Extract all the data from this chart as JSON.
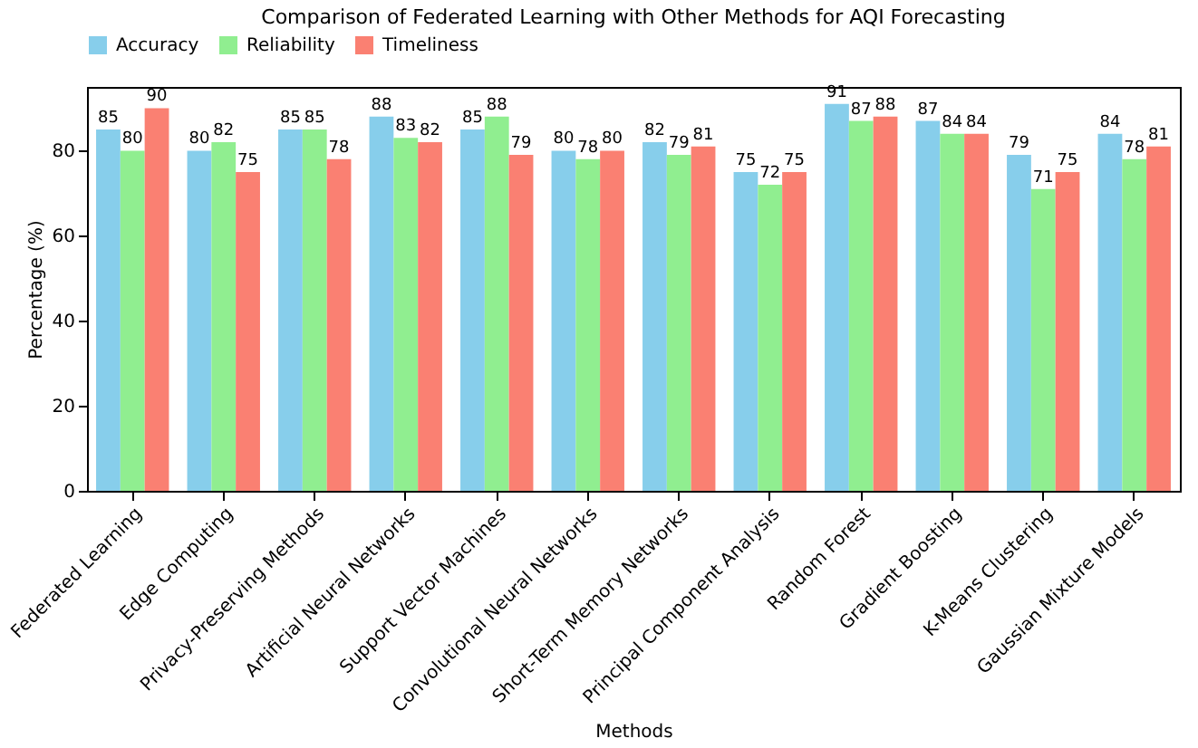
{
  "chart_data": {
    "type": "bar",
    "title": "Comparison of Federated Learning with Other Methods for AQI Forecasting",
    "xlabel": "Methods",
    "ylabel": "Percentage (%)",
    "categories": [
      "Federated Learning",
      "Edge Computing",
      "Privacy-Preserving Methods",
      "Artificial Neural Networks",
      "Support Vector Machines",
      "Convolutional Neural Networks",
      "Short-Term Memory Networks",
      "Principal Component Analysis",
      "Random Forest",
      "Gradient Boosting",
      "K-Means Clustering",
      "Gaussian Mixture Models"
    ],
    "series": [
      {
        "name": "Accuracy",
        "color": "#87ceeb",
        "values": [
          85,
          80,
          85,
          88,
          85,
          80,
          82,
          75,
          91,
          87,
          79,
          84
        ]
      },
      {
        "name": "Reliability",
        "color": "#90ee90",
        "values": [
          80,
          82,
          85,
          83,
          88,
          78,
          79,
          72,
          87,
          84,
          71,
          78
        ]
      },
      {
        "name": "Timeliness",
        "color": "#fa8072",
        "values": [
          90,
          75,
          78,
          82,
          79,
          80,
          81,
          75,
          88,
          84,
          75,
          81
        ]
      }
    ],
    "ylim": [
      0,
      95
    ],
    "yticks": [
      0,
      20,
      40,
      60,
      80
    ],
    "data_labels": true,
    "legend": "top"
  }
}
